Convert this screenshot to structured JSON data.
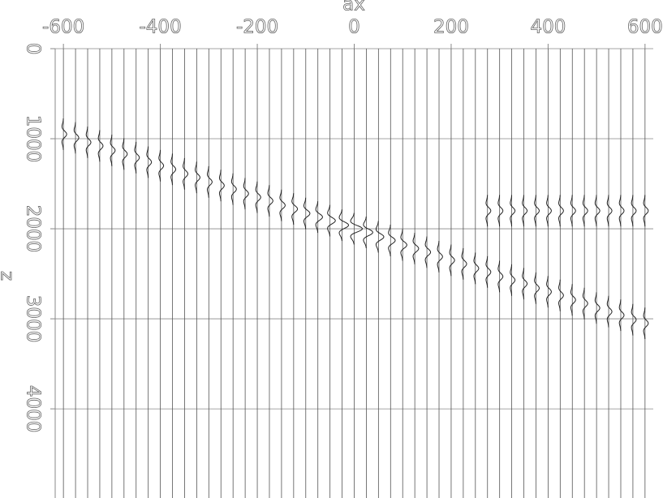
{
  "chart_data": {
    "type": "wiggle",
    "x_label": "ax",
    "y_label": "z",
    "x": [
      -600,
      -575,
      -550,
      -525,
      -500,
      -475,
      -450,
      -425,
      -400,
      -375,
      -350,
      -325,
      -300,
      -275,
      -250,
      -225,
      -200,
      -175,
      -150,
      -125,
      -100,
      -75,
      -50,
      -25,
      0,
      25,
      50,
      75,
      100,
      125,
      150,
      175,
      200,
      225,
      250,
      275,
      300,
      325,
      350,
      375,
      400,
      425,
      450,
      475,
      500,
      525,
      550,
      575,
      600
    ],
    "series": [
      {
        "color": "#222222",
        "values": [
          950,
          990,
          1040,
          1080,
          1130,
          1170,
          1210,
          1260,
          1300,
          1340,
          1390,
          1430,
          1480,
          1520,
          1560,
          1610,
          1650,
          1690,
          1740,
          1780,
          1830,
          1870,
          1910,
          1960,
          2000,
          2040,
          2090,
          2130,
          2180,
          2220,
          2260,
          2310,
          2350,
          2390,
          2440,
          2480,
          2530,
          2570,
          2610,
          2660,
          2700,
          2740,
          2790,
          2830,
          2880,
          2920,
          2960,
          3010,
          3050
        ]
      },
      {
        "color": "#222222",
        "values": [
          null,
          null,
          null,
          null,
          null,
          null,
          null,
          null,
          null,
          null,
          null,
          null,
          null,
          null,
          null,
          null,
          null,
          null,
          null,
          null,
          null,
          null,
          null,
          null,
          null,
          null,
          null,
          null,
          null,
          null,
          null,
          null,
          null,
          null,
          null,
          1800,
          1800,
          1800,
          1800,
          1800,
          1800,
          1800,
          1800,
          1800,
          1800,
          1800,
          1800,
          1800,
          1800
        ]
      }
    ],
    "xlim": [
      -617,
      617
    ],
    "ylim": [
      0,
      4990
    ],
    "xticks": [
      -600,
      -400,
      -200,
      0,
      200,
      400,
      600
    ],
    "yticks": [
      0,
      1000,
      2000,
      3000,
      4000
    ],
    "grid": true,
    "trace_color": "#555555",
    "grid_color": "#888888"
  }
}
